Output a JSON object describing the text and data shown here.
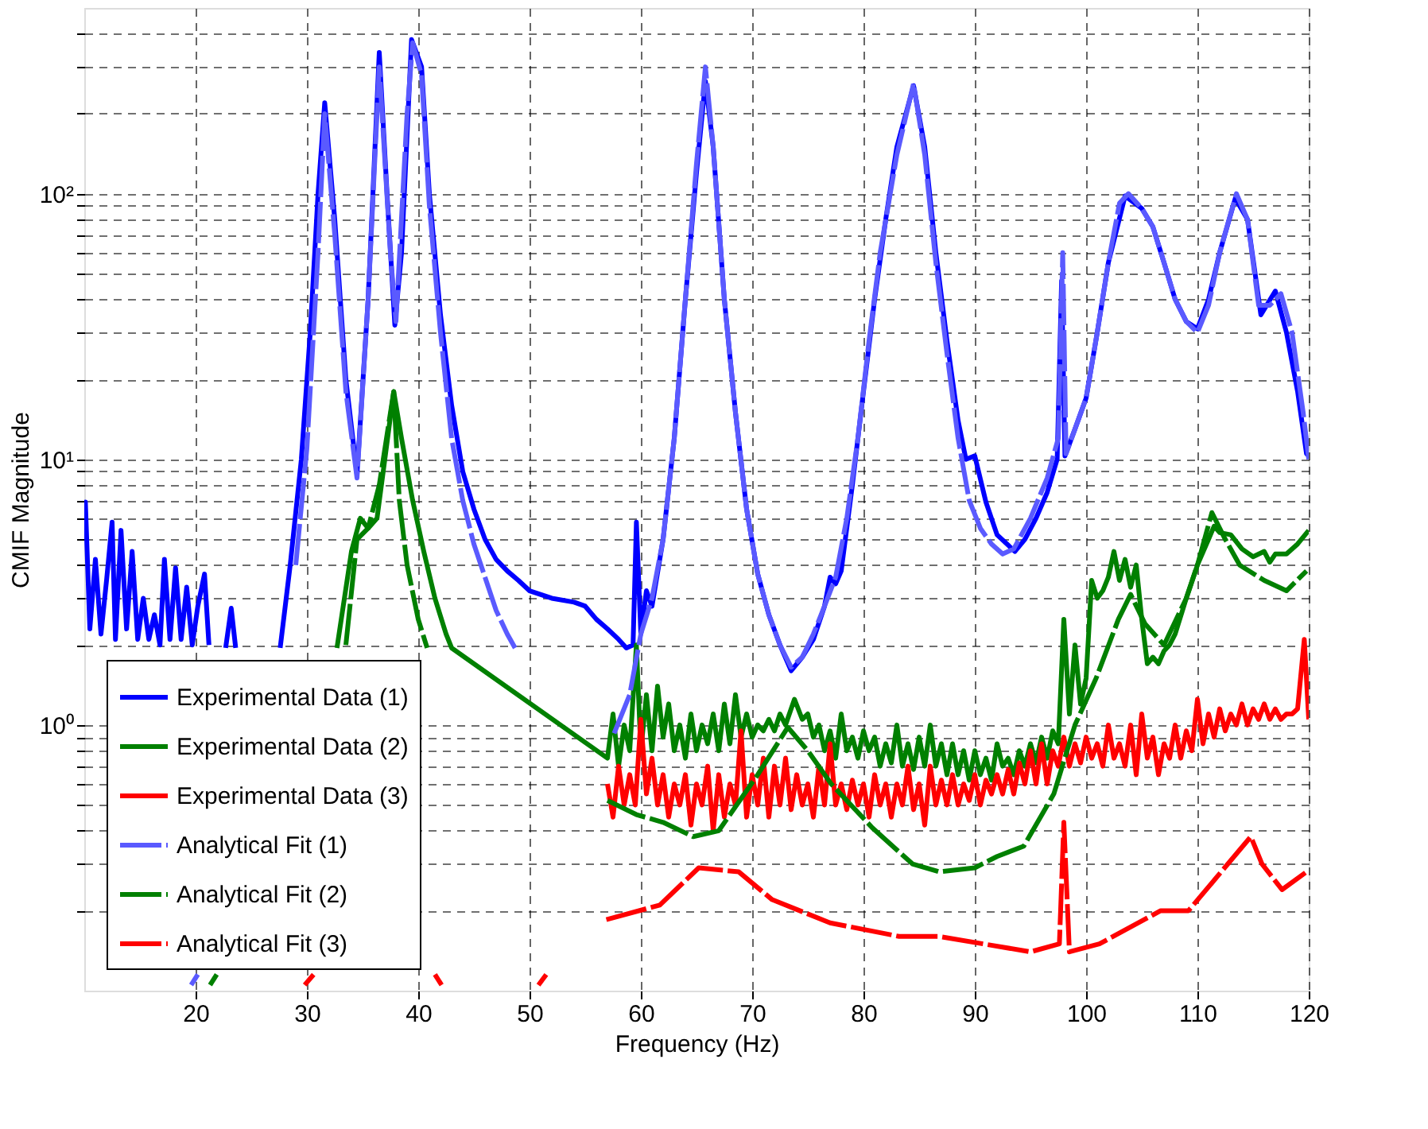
{
  "chart_data": {
    "type": "line",
    "xlabel": "Frequency (Hz)",
    "ylabel": "CMIF Magnitude",
    "log": true,
    "grid": true,
    "legend": "bottom left",
    "marker": "none",
    "xlim": [
      10,
      120
    ],
    "xticks": [
      20,
      30,
      40,
      50,
      60,
      70,
      80,
      90,
      100,
      110,
      120
    ],
    "ylim": [
      0.1,
      500
    ],
    "yticks": [
      {
        "value": 0.2,
        "label": null
      },
      {
        "value": 0.3,
        "label": null
      },
      {
        "value": 0.4,
        "label": null
      },
      {
        "value": 0.5,
        "label": null
      },
      {
        "value": 0.6,
        "label": null
      },
      {
        "value": 0.7,
        "label": null
      },
      {
        "value": 0.8,
        "label": null
      },
      {
        "value": 0.9,
        "label": null
      },
      {
        "value": 1,
        "label": "10⁰"
      },
      {
        "value": 2,
        "label": null
      },
      {
        "value": 3,
        "label": null
      },
      {
        "value": 4,
        "label": null
      },
      {
        "value": 5,
        "label": null
      },
      {
        "value": 6,
        "label": null
      },
      {
        "value": 7,
        "label": null
      },
      {
        "value": 8,
        "label": null
      },
      {
        "value": 9,
        "label": null
      },
      {
        "value": 10,
        "label": "10¹"
      },
      {
        "value": 20,
        "label": null
      },
      {
        "value": 30,
        "label": null
      },
      {
        "value": 40,
        "label": null
      },
      {
        "value": 50,
        "label": null
      },
      {
        "value": 60,
        "label": null
      },
      {
        "value": 70,
        "label": null
      },
      {
        "value": 80,
        "label": null
      },
      {
        "value": 90,
        "label": null
      },
      {
        "value": 100,
        "label": "10²"
      },
      {
        "value": 200,
        "label": null
      },
      {
        "value": 300,
        "label": null
      },
      {
        "value": 400,
        "label": null
      }
    ],
    "series": [
      {
        "name": "Experimental Data (1)",
        "color": "#0000ff",
        "line_style": "solid",
        "x": [
          10,
          10.1,
          10.5,
          11,
          11.5,
          12,
          12.5,
          12.8,
          13.3,
          13.8,
          14.3,
          14.8,
          15.3,
          15.8,
          16.3,
          16.8,
          17.2,
          17.7,
          18.2,
          18.7,
          19.2,
          19.7,
          20.2,
          20.8,
          21.2,
          22,
          22.7,
          23.2,
          23.6,
          24,
          27.6,
          28.5,
          29.5,
          30.3,
          31,
          31.6,
          32.5,
          33.5,
          34.5,
          35.5,
          36.5,
          37.2,
          37.9,
          38.5,
          39.4,
          40.3,
          41,
          42,
          43,
          44,
          45,
          46,
          47,
          48,
          49,
          50,
          52,
          54,
          55,
          56,
          57,
          58,
          58.7,
          59.3,
          59.6,
          60,
          60.5,
          61,
          62,
          63,
          64,
          65,
          65.8,
          66.5,
          67.5,
          68.5,
          69.5,
          70.5,
          71.5,
          72.5,
          73.5,
          74.5,
          75.5,
          76.5,
          77,
          77.5,
          78,
          79,
          80,
          81,
          82,
          83,
          84.5,
          85.5,
          86.5,
          87.5,
          88.5,
          89.2,
          90,
          91,
          92,
          93.6,
          94.5,
          95.5,
          96.5,
          97.4,
          97.8,
          98.1,
          99,
          100,
          101,
          102,
          103.5,
          105,
          106,
          107,
          108,
          109,
          110,
          111,
          112,
          113.4,
          114.5,
          115.7,
          117,
          118,
          119,
          119.8,
          120
        ],
        "values": [
          5.5,
          6.9,
          2.3,
          4.2,
          2.2,
          3.5,
          5.8,
          2.1,
          5.4,
          2.3,
          4.5,
          2.1,
          3.0,
          2.1,
          2.6,
          2.0,
          4.2,
          2.1,
          3.9,
          2.1,
          3.3,
          2.0,
          2.8,
          3.7,
          2.0,
          null,
          1.95,
          2.75,
          1.95,
          null,
          1.95,
          4,
          10,
          30,
          100,
          220,
          80,
          20,
          8.8,
          40,
          340,
          100,
          32,
          60,
          380,
          300,
          100,
          35,
          16,
          9,
          6.5,
          5,
          4.2,
          3.8,
          3.5,
          3.2,
          3.0,
          2.9,
          2.8,
          2.5,
          2.3,
          2.1,
          1.95,
          2.0,
          5.8,
          2.2,
          3.2,
          2.8,
          5,
          12,
          40,
          120,
          265,
          150,
          40,
          15,
          6.5,
          3.7,
          2.6,
          2.0,
          1.6,
          1.8,
          2.1,
          2.8,
          3.6,
          3.4,
          3.8,
          8,
          18,
          40,
          80,
          150,
          255,
          150,
          60,
          28,
          14,
          10,
          10.3,
          6.9,
          5.2,
          4.5,
          5,
          6,
          7.5,
          10,
          47,
          10.3,
          13,
          17,
          30,
          55,
          98,
          88,
          75,
          55,
          40,
          33,
          31,
          40,
          60,
          96,
          80,
          35,
          43,
          30,
          18,
          10.5,
          10.3
        ]
      },
      {
        "name": "Experimental Data (2)",
        "color": "#008000",
        "line_style": "solid",
        "x": [
          32.7,
          34,
          34.8,
          35.5,
          36.3,
          37,
          37.8,
          38.5,
          39.5,
          40.5,
          41.5,
          42.5,
          43,
          57,
          57.5,
          58,
          58.5,
          59,
          59.6,
          60,
          60.5,
          61,
          61.5,
          62,
          62.5,
          63,
          63.5,
          64,
          64.5,
          65,
          65.5,
          66,
          66.5,
          67,
          67.5,
          68,
          68.5,
          69,
          69.5,
          70,
          70.5,
          71,
          71.5,
          72,
          72.5,
          73,
          73.8,
          74.5,
          75,
          75.5,
          76,
          76.5,
          77,
          77.5,
          78,
          78.5,
          79,
          79.5,
          80,
          80.5,
          81,
          81.5,
          82,
          82.5,
          83,
          83.5,
          84,
          84.5,
          85,
          85.5,
          86,
          86.5,
          87,
          87.5,
          88,
          88.5,
          89,
          89.5,
          90,
          90.5,
          91,
          91.5,
          92,
          92.5,
          93,
          93.5,
          94,
          94.5,
          95,
          95.5,
          96,
          96.5,
          97,
          97.5,
          98,
          98.5,
          99,
          99.5,
          100,
          100.5,
          101,
          101.5,
          102,
          102.5,
          103,
          103.5,
          104,
          104.5,
          105,
          105.5,
          106,
          106.5,
          107,
          107.5,
          108,
          109,
          110,
          111,
          111.5,
          112,
          113,
          114,
          115,
          116,
          116.5,
          117,
          118,
          119,
          120
        ],
        "values": [
          1.95,
          4.5,
          6,
          5.5,
          6,
          10,
          18,
          12,
          7,
          4.5,
          3,
          2.2,
          1.95,
          0.75,
          1.1,
          0.7,
          1.0,
          0.8,
          2.0,
          0.8,
          1.3,
          0.8,
          1.4,
          0.9,
          1.2,
          0.8,
          1.0,
          0.75,
          1.1,
          0.8,
          1.0,
          0.85,
          1.1,
          0.8,
          1.2,
          0.85,
          1.3,
          0.9,
          1.1,
          0.9,
          1.0,
          0.95,
          1.05,
          0.95,
          1.1,
          1.0,
          1.25,
          1.05,
          1.1,
          0.9,
          1.0,
          0.8,
          0.95,
          0.75,
          1.1,
          0.8,
          0.9,
          0.75,
          0.95,
          0.8,
          0.9,
          0.7,
          0.85,
          0.72,
          1.0,
          0.7,
          0.85,
          0.68,
          0.9,
          0.7,
          1.0,
          0.7,
          0.85,
          0.65,
          0.85,
          0.65,
          0.8,
          0.62,
          0.8,
          0.65,
          0.75,
          0.62,
          0.85,
          0.7,
          0.75,
          0.65,
          0.8,
          0.7,
          0.85,
          0.72,
          0.9,
          0.75,
          0.95,
          0.85,
          2.5,
          1.1,
          2.0,
          1.2,
          1.5,
          3.5,
          3.0,
          3.2,
          3.6,
          4.5,
          3.5,
          4.2,
          3.3,
          4.0,
          2.5,
          1.7,
          1.8,
          1.7,
          1.9,
          2.0,
          2.2,
          3.0,
          4.0,
          5.0,
          5.6,
          5.3,
          5.2,
          4.6,
          4.3,
          4.5,
          4.1,
          4.4,
          4.4,
          4.8,
          5.4
        ]
      },
      {
        "name": "Experimental Data (3)",
        "color": "#ff0000",
        "line_style": "solid",
        "x": [
          57,
          57.5,
          58,
          58.5,
          59,
          59.5,
          60,
          60.5,
          61,
          61.5,
          62,
          62.5,
          63,
          63.5,
          64,
          64.5,
          65,
          65.5,
          66,
          66.5,
          67,
          67.5,
          68,
          68.5,
          69,
          69.5,
          70,
          70.5,
          71,
          71.5,
          72,
          72.5,
          73,
          73.5,
          74,
          74.5,
          75,
          75.5,
          76,
          76.5,
          77,
          77.5,
          78,
          78.5,
          79,
          79.5,
          80,
          80.5,
          81,
          81.5,
          82,
          82.5,
          83,
          83.5,
          84,
          84.5,
          85,
          85.5,
          86,
          86.5,
          87,
          87.5,
          88,
          88.5,
          89,
          89.5,
          90,
          90.5,
          91,
          91.5,
          92,
          92.5,
          93,
          93.5,
          94,
          94.5,
          95,
          95.5,
          96,
          96.5,
          97,
          97.5,
          98,
          98.5,
          99,
          99.5,
          100,
          100.5,
          101,
          101.5,
          102,
          102.5,
          103,
          103.5,
          104,
          104.5,
          105,
          105.5,
          106,
          106.5,
          107,
          107.5,
          108,
          108.5,
          109,
          109.5,
          110,
          110.5,
          111,
          111.5,
          112,
          112.5,
          113,
          113.5,
          114,
          114.5,
          115,
          115.5,
          116,
          116.5,
          117,
          117.5,
          118,
          118.5,
          119,
          119.6,
          120
        ],
        "values": [
          0.6,
          0.45,
          0.7,
          0.5,
          0.65,
          0.5,
          1.05,
          0.55,
          0.75,
          0.5,
          0.65,
          0.45,
          0.6,
          0.5,
          0.65,
          0.42,
          0.6,
          0.5,
          0.7,
          0.4,
          0.65,
          0.45,
          0.6,
          0.5,
          0.95,
          0.45,
          0.65,
          0.5,
          0.75,
          0.45,
          0.7,
          0.5,
          0.75,
          0.48,
          0.65,
          0.5,
          0.6,
          0.45,
          0.7,
          0.5,
          0.85,
          0.5,
          0.6,
          0.48,
          0.62,
          0.5,
          0.6,
          0.45,
          0.65,
          0.5,
          0.6,
          0.45,
          0.6,
          0.5,
          0.7,
          0.48,
          0.6,
          0.42,
          0.7,
          0.5,
          0.62,
          0.5,
          0.65,
          0.5,
          0.6,
          0.52,
          0.65,
          0.5,
          0.62,
          0.55,
          0.65,
          0.55,
          0.68,
          0.55,
          0.72,
          0.6,
          0.8,
          0.6,
          0.85,
          0.6,
          0.8,
          0.7,
          0.9,
          0.7,
          0.85,
          0.72,
          0.9,
          0.75,
          0.85,
          0.7,
          1.0,
          0.75,
          0.85,
          0.7,
          1.0,
          0.65,
          1.1,
          0.75,
          0.9,
          0.65,
          0.85,
          0.75,
          1.0,
          0.75,
          0.95,
          0.8,
          1.25,
          0.85,
          1.1,
          0.9,
          1.15,
          0.95,
          1.1,
          1.0,
          1.2,
          1.0,
          1.15,
          1.05,
          1.2,
          1.05,
          1.15,
          1.05,
          1.1,
          1.1,
          1.15,
          2.1,
          1.05
        ]
      },
      {
        "name": "Analytical Fit (1)",
        "color": "#5a5aff",
        "line_style": "dashed",
        "x": [
          19.6,
          20.2,
          21,
          29,
          30,
          31,
          31.6,
          32.5,
          33.5,
          34.5,
          35.5,
          36.5,
          37.5,
          38,
          39,
          39.5,
          40.3,
          41,
          42,
          43,
          44,
          45,
          46,
          47,
          48,
          48.7,
          49,
          57.6,
          59,
          60,
          61,
          62,
          63,
          64,
          65,
          65.8,
          66.5,
          67.5,
          68.5,
          69.5,
          70.5,
          71.5,
          72.5,
          73.5,
          74.5,
          75.5,
          76.5,
          77.5,
          78.5,
          79.5,
          80.5,
          81.5,
          83,
          84.5,
          85.5,
          86.5,
          87.5,
          88.5,
          89.5,
          90.5,
          91.5,
          92.5,
          93.5,
          95,
          96.5,
          97.5,
          97.9,
          98.2,
          99,
          100,
          101,
          102,
          103,
          103.8,
          105,
          106,
          107,
          108,
          109,
          110,
          111,
          112,
          113.5,
          114.5,
          115.5,
          116.5,
          117.5,
          118.5,
          119.5,
          120
        ],
        "values": [
          0.105,
          0.115,
          null,
          4,
          11,
          60,
          200,
          70,
          18,
          8.5,
          40,
          300,
          60,
          33,
          200,
          370,
          280,
          90,
          30,
          12,
          7,
          4.8,
          3.6,
          2.7,
          2.2,
          1.95,
          null,
          0.93,
          1.3,
          2.2,
          3,
          5,
          12,
          40,
          130,
          300,
          150,
          40,
          15,
          6.5,
          3.7,
          2.6,
          2.0,
          1.65,
          1.8,
          2.2,
          2.8,
          3.6,
          6,
          12,
          28,
          60,
          140,
          260,
          140,
          55,
          25,
          12,
          7,
          5.5,
          4.8,
          4.4,
          4.6,
          6,
          8.5,
          12,
          60,
          10.5,
          13,
          17,
          30,
          55,
          92,
          100,
          88,
          75,
          55,
          40,
          33,
          30,
          38,
          60,
          100,
          80,
          38,
          38,
          42,
          30,
          15,
          10
        ]
      },
      {
        "name": "Analytical Fit (2)",
        "color": "#008000",
        "line_style": "dashed",
        "x": [
          21.3,
          21.9,
          22.5,
          33.5,
          34.5,
          35.5,
          36.5,
          37.8,
          38.3,
          39,
          40,
          40.8,
          41.2,
          57,
          59.6,
          62,
          64.7,
          67,
          70.5,
          73.2,
          75,
          77.1,
          80.8,
          84.4,
          86.8,
          90,
          92,
          94.4,
          97.1,
          99,
          100.9,
          102.9,
          104,
          105.3,
          107,
          109,
          110,
          111.3,
          112.5,
          113.8,
          116,
          118,
          119.8
        ],
        "values": [
          0.105,
          0.115,
          null,
          2,
          5,
          5.5,
          8,
          18,
          7,
          4,
          2.5,
          1.95,
          null,
          0.52,
          0.46,
          0.43,
          0.38,
          0.4,
          0.65,
          0.98,
          0.8,
          0.6,
          0.41,
          0.3,
          0.28,
          0.29,
          0.32,
          0.35,
          0.55,
          1.0,
          1.5,
          2.5,
          3.1,
          2.4,
          2.0,
          3.0,
          4,
          6.3,
          5,
          4.0,
          3.5,
          3.2,
          3.8
        ]
      },
      {
        "name": "Analytical Fit (3)",
        "color": "#ff0000",
        "line_style": "dashed",
        "x": [
          29.8,
          30.6,
          31,
          41.5,
          42.1,
          43,
          50.8,
          51.5,
          52,
          56.9,
          61.7,
          65.2,
          68.8,
          71.8,
          77,
          83.2,
          86.8,
          95,
          97.6,
          98,
          98.5,
          101.2,
          106.7,
          109.2,
          114.8,
          115.8,
          117.6,
          119.8
        ],
        "values": [
          0.105,
          0.115,
          null,
          0.115,
          0.105,
          null,
          0.105,
          0.115,
          null,
          0.185,
          0.21,
          0.29,
          0.28,
          0.22,
          0.18,
          0.16,
          0.16,
          0.14,
          0.15,
          0.43,
          0.14,
          0.15,
          0.2,
          0.2,
          0.38,
          0.3,
          0.24,
          0.28
        ]
      }
    ]
  }
}
